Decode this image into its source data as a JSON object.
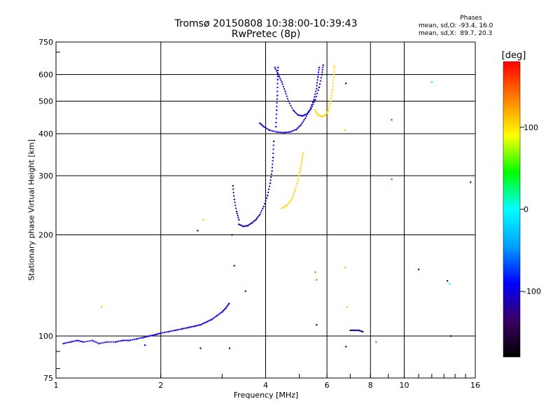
{
  "title": "Tromsø 20150808 10:38:00-10:39:43",
  "subtitle": "RwPretec (8p)",
  "phases": {
    "heading": "Phases",
    "o_line": "mean, sd,O: -93.4, 16.0",
    "x_line": "mean, sd,X:  89.7, 20.3"
  },
  "colors": {
    "grid": "#000000",
    "colorbar_stops": [
      "#000000",
      "#3a0064",
      "#0000ff",
      "#00a0ff",
      "#00ffff",
      "#00ff00",
      "#ffff00",
      "#ff8000",
      "#ff0000"
    ]
  },
  "chart_data": {
    "type": "scatter",
    "xlabel": "Frequency [MHz]",
    "ylabel": "Stationary phase Virtual Height [km]",
    "xscale": "log",
    "yscale": "log",
    "xlim": [
      1,
      16
    ],
    "ylim": [
      75,
      750
    ],
    "x_ticks": [
      1,
      2,
      4,
      6,
      8,
      10,
      16
    ],
    "x_tick_labels": [
      "1",
      "2",
      "4",
      "6",
      "8",
      "10",
      "16"
    ],
    "y_ticks": [
      75,
      100,
      200,
      300,
      400,
      500,
      600,
      750
    ],
    "y_tick_labels": [
      "75",
      "100",
      "200",
      "300",
      "400",
      "500",
      "600",
      "750"
    ],
    "grid": true,
    "colorbar": {
      "label": "[deg]",
      "range": [
        -180,
        180
      ],
      "ticks": [
        100,
        0,
        -100
      ],
      "tick_labels": [
        "100",
        "0",
        "-100"
      ]
    },
    "traces": [
      {
        "phase": -100,
        "points": [
          [
            1.05,
            95
          ],
          [
            1.1,
            96
          ],
          [
            1.15,
            97
          ],
          [
            1.2,
            96
          ],
          [
            1.27,
            97
          ],
          [
            1.33,
            95
          ],
          [
            1.4,
            96
          ],
          [
            1.48,
            96
          ],
          [
            1.55,
            97
          ],
          [
            1.62,
            97
          ],
          [
            1.7,
            98
          ],
          [
            1.78,
            99
          ],
          [
            1.85,
            100
          ],
          [
            1.93,
            101
          ],
          [
            2.0,
            102
          ],
          [
            2.1,
            103
          ],
          [
            2.2,
            104
          ],
          [
            2.3,
            105
          ],
          [
            2.4,
            106
          ],
          [
            2.5,
            107
          ],
          [
            2.6,
            108
          ],
          [
            2.7,
            110
          ],
          [
            2.8,
            112
          ],
          [
            2.9,
            115
          ],
          [
            3.0,
            118
          ],
          [
            3.07,
            121
          ],
          [
            3.14,
            125
          ]
        ]
      },
      {
        "phase": -110,
        "points": [
          [
            3.35,
            215
          ],
          [
            3.45,
            212
          ],
          [
            3.55,
            213
          ],
          [
            3.65,
            217
          ],
          [
            3.75,
            222
          ],
          [
            3.85,
            230
          ],
          [
            3.95,
            243
          ],
          [
            4.05,
            262
          ],
          [
            4.12,
            285
          ],
          [
            4.17,
            310
          ],
          [
            4.2,
            340
          ],
          [
            4.22,
            380
          ]
        ]
      },
      {
        "phase": -115,
        "points": [
          [
            3.22,
            280
          ],
          [
            3.25,
            255
          ],
          [
            3.3,
            235
          ],
          [
            3.35,
            222
          ]
        ]
      },
      {
        "phase": -100,
        "points": [
          [
            3.85,
            430
          ],
          [
            3.95,
            420
          ],
          [
            4.1,
            410
          ],
          [
            4.3,
            405
          ],
          [
            4.5,
            403
          ],
          [
            4.7,
            405
          ],
          [
            4.9,
            412
          ],
          [
            5.05,
            425
          ],
          [
            5.2,
            445
          ],
          [
            5.35,
            470
          ],
          [
            5.5,
            505
          ],
          [
            5.6,
            545
          ],
          [
            5.65,
            590
          ],
          [
            5.7,
            630
          ]
        ]
      },
      {
        "phase": -105,
        "points": [
          [
            4.25,
            630
          ],
          [
            4.35,
            600
          ],
          [
            4.45,
            570
          ],
          [
            4.55,
            535
          ],
          [
            4.65,
            500
          ],
          [
            4.8,
            470
          ],
          [
            4.95,
            455
          ],
          [
            5.1,
            452
          ],
          [
            5.25,
            458
          ],
          [
            5.4,
            475
          ],
          [
            5.55,
            505
          ],
          [
            5.7,
            550
          ],
          [
            5.8,
            600
          ],
          [
            5.85,
            640
          ]
        ]
      },
      {
        "phase": -95,
        "points": [
          [
            4.28,
            420
          ],
          [
            4.3,
            470
          ],
          [
            4.32,
            520
          ],
          [
            4.33,
            580
          ],
          [
            4.34,
            630
          ]
        ]
      },
      {
        "phase": 105,
        "points": [
          [
            5.55,
            470
          ],
          [
            5.65,
            455
          ],
          [
            5.8,
            450
          ],
          [
            5.95,
            455
          ],
          [
            6.05,
            470
          ],
          [
            6.15,
            500
          ],
          [
            6.22,
            540
          ],
          [
            6.27,
            590
          ],
          [
            6.3,
            635
          ]
        ]
      },
      {
        "phase": 105,
        "points": [
          [
            4.45,
            240
          ],
          [
            4.6,
            245
          ],
          [
            4.75,
            255
          ],
          [
            4.85,
            270
          ],
          [
            4.95,
            290
          ],
          [
            5.02,
            310
          ],
          [
            5.08,
            330
          ],
          [
            5.12,
            350
          ]
        ]
      },
      {
        "phase": -115,
        "points": [
          [
            7.0,
            104
          ],
          [
            7.2,
            104
          ],
          [
            7.4,
            104
          ],
          [
            7.6,
            103
          ]
        ]
      }
    ],
    "isolated_points": [
      {
        "x": 1.35,
        "y": 122,
        "phase": 110
      },
      {
        "x": 2.65,
        "y": 222,
        "phase": 110
      },
      {
        "x": 2.55,
        "y": 206,
        "phase": -110
      },
      {
        "x": 3.2,
        "y": 200,
        "phase": -110
      },
      {
        "x": 3.25,
        "y": 162,
        "phase": -110
      },
      {
        "x": 3.5,
        "y": 136,
        "phase": -100
      },
      {
        "x": 2.6,
        "y": 92,
        "phase": -110
      },
      {
        "x": 3.15,
        "y": 92,
        "phase": -110
      },
      {
        "x": 1.8,
        "y": 94,
        "phase": -110
      },
      {
        "x": 5.55,
        "y": 155,
        "phase": 140
      },
      {
        "x": 5.6,
        "y": 147,
        "phase": 140
      },
      {
        "x": 6.75,
        "y": 160,
        "phase": 110
      },
      {
        "x": 6.85,
        "y": 122,
        "phase": 110
      },
      {
        "x": 6.75,
        "y": 410,
        "phase": 110
      },
      {
        "x": 6.8,
        "y": 565,
        "phase": -110
      },
      {
        "x": 5.6,
        "y": 108,
        "phase": -110
      },
      {
        "x": 6.8,
        "y": 93,
        "phase": -110
      },
      {
        "x": 8.3,
        "y": 96,
        "phase": 150
      },
      {
        "x": 9.2,
        "y": 440,
        "phase": 170
      },
      {
        "x": 9.2,
        "y": 293,
        "phase": 160
      },
      {
        "x": 11.0,
        "y": 158,
        "phase": -110
      },
      {
        "x": 12.0,
        "y": 570,
        "phase": -10
      },
      {
        "x": 13.3,
        "y": 146,
        "phase": -100
      },
      {
        "x": 13.5,
        "y": 143,
        "phase": -10
      },
      {
        "x": 13.6,
        "y": 100,
        "phase": -100
      },
      {
        "x": 15.5,
        "y": 287,
        "phase": -110
      }
    ]
  }
}
